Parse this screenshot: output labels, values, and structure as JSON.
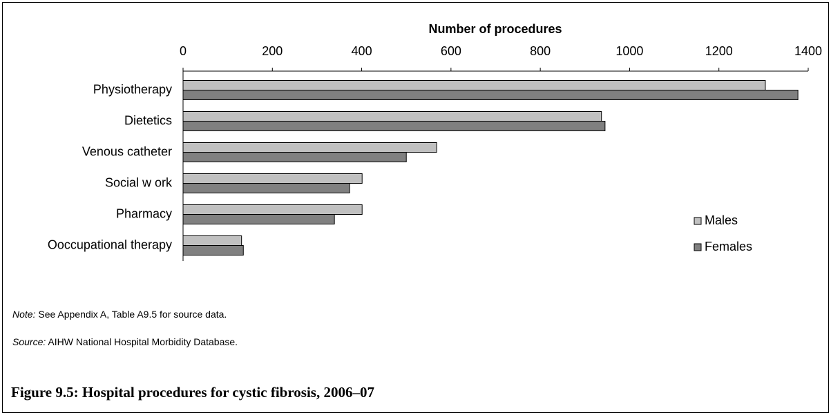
{
  "chart_data": {
    "type": "barh",
    "title": "Number of procedures",
    "categories": [
      "Physiotherapy",
      "Dietetics",
      "Venous catheter",
      "Social w ork",
      "Pharmacy",
      "Ooccupational therapy"
    ],
    "series": [
      {
        "name": "Males",
        "color": "#c0c0c0",
        "values": [
          1304,
          937,
          568,
          401,
          401,
          131
        ]
      },
      {
        "name": "Females",
        "color": "#808080",
        "values": [
          1377,
          945,
          500,
          373,
          339,
          135
        ]
      }
    ],
    "xlim": [
      0,
      1400
    ],
    "xticks": [
      0,
      200,
      400,
      600,
      800,
      1000,
      1200,
      1400
    ],
    "legend": "right",
    "note_label": "Note:",
    "note": "See Appendix A, Table A9.5 for source data.",
    "source_label": "Source:",
    "source": "AIHW National Hospital Morbidity Database.",
    "caption": "Figure 9.5: Hospital procedures for cystic fibrosis, 2006–07"
  }
}
